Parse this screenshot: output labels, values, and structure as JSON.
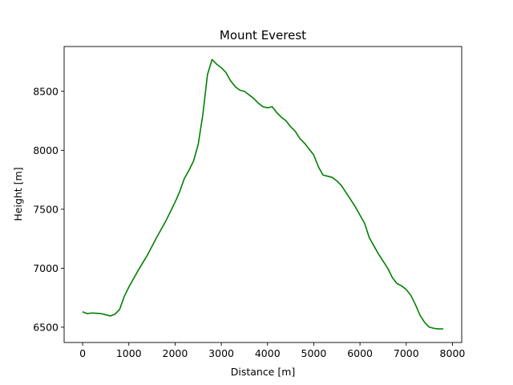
{
  "chart_data": {
    "type": "line",
    "title": "Mount Everest",
    "xlabel": "Distance [m]",
    "ylabel": "Height [m]",
    "xlim": [
      -400,
      8200
    ],
    "ylim": [
      6370,
      8880
    ],
    "xticks": [
      0,
      1000,
      2000,
      3000,
      4000,
      5000,
      6000,
      7000,
      8000
    ],
    "yticks": [
      6500,
      7000,
      7500,
      8000,
      8500
    ],
    "grid": false,
    "line_color": "#008000",
    "series": [
      {
        "x": [
          0,
          100,
          200,
          300,
          400,
          500,
          600,
          700,
          800,
          900,
          1000,
          1200,
          1400,
          1600,
          1800,
          2000,
          2100,
          2200,
          2300,
          2400,
          2500,
          2600,
          2700,
          2800,
          2900,
          3000,
          3100,
          3200,
          3300,
          3400,
          3500,
          3600,
          3700,
          3800,
          3900,
          4000,
          4100,
          4200,
          4300,
          4400,
          4500,
          4600,
          4700,
          4800,
          4900,
          5000,
          5100,
          5200,
          5300,
          5400,
          5500,
          5600,
          5700,
          5800,
          5900,
          6000,
          6100,
          6200,
          6300,
          6400,
          6500,
          6600,
          6700,
          6800,
          6900,
          7000,
          7100,
          7200,
          7300,
          7400,
          7500,
          7600,
          7700,
          7800
        ],
        "y": [
          6630,
          6615,
          6620,
          6618,
          6615,
          6605,
          6595,
          6610,
          6650,
          6760,
          6840,
          6980,
          7110,
          7260,
          7400,
          7560,
          7650,
          7760,
          7830,
          7910,
          8050,
          8300,
          8640,
          8770,
          8730,
          8700,
          8660,
          8590,
          8540,
          8510,
          8500,
          8470,
          8440,
          8400,
          8370,
          8360,
          8370,
          8320,
          8280,
          8250,
          8200,
          8160,
          8100,
          8060,
          8010,
          7960,
          7860,
          7790,
          7780,
          7770,
          7740,
          7700,
          7640,
          7580,
          7520,
          7450,
          7380,
          7260,
          7190,
          7120,
          7060,
          7000,
          6920,
          6870,
          6850,
          6820,
          6770,
          6690,
          6600,
          6540,
          6500,
          6490,
          6485,
          6485
        ]
      }
    ]
  }
}
